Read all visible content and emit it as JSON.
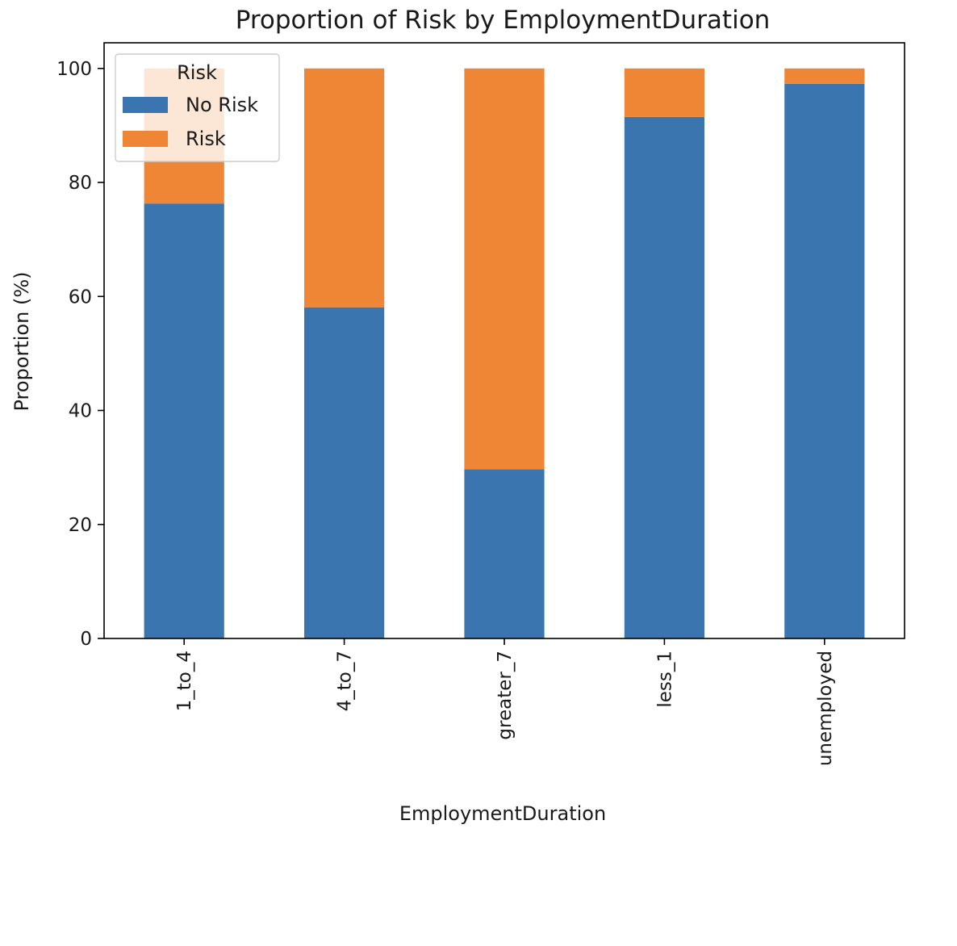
{
  "chart_data": {
    "type": "bar",
    "stacked": true,
    "title": "Proportion of Risk by EmploymentDuration",
    "xlabel": "EmploymentDuration",
    "ylabel": "Proportion (%)",
    "categories": [
      "1_to_4",
      "4_to_7",
      "greater_7",
      "less_1",
      "unemployed"
    ],
    "series": [
      {
        "name": "No Risk",
        "color": "#3a75af",
        "values": [
          76.3,
          58.1,
          29.7,
          91.5,
          97.3
        ]
      },
      {
        "name": "Risk",
        "color": "#ef8636",
        "values": [
          23.7,
          41.9,
          70.3,
          8.5,
          2.7
        ]
      }
    ],
    "ylim": [
      0,
      104.5
    ],
    "yticks": [
      0,
      20,
      40,
      60,
      80,
      100
    ],
    "grid": false,
    "legend": {
      "title": "Risk",
      "placement": "top-left"
    }
  }
}
